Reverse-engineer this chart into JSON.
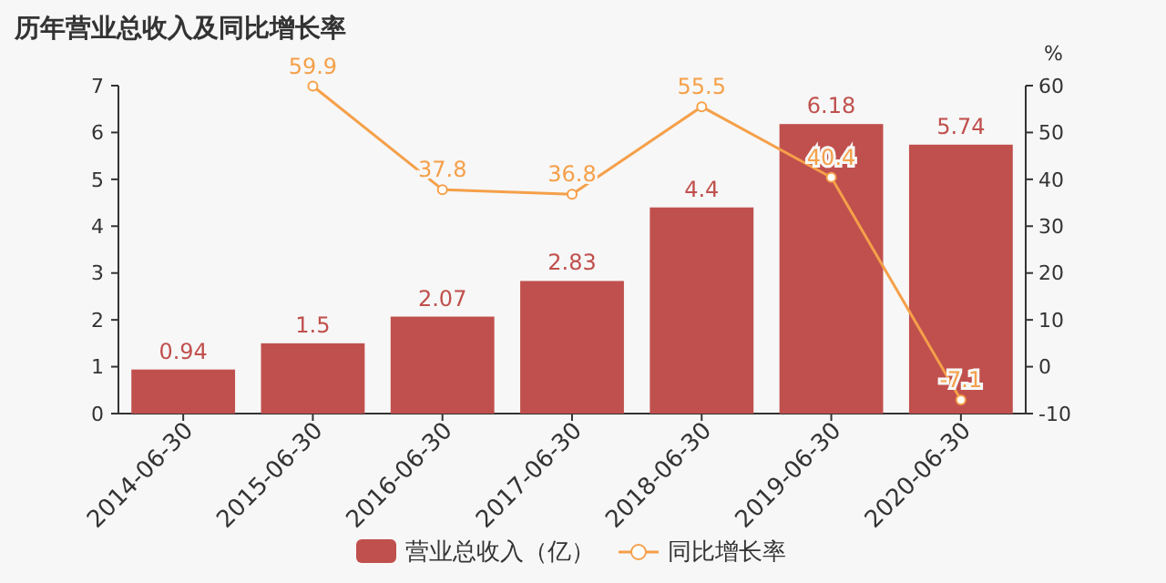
{
  "chart_data": {
    "type": "bar",
    "title": "历年营业总收入及同比增长率",
    "y2label": "%",
    "categories": [
      "2014-06-30",
      "2015-06-30",
      "2016-06-30",
      "2017-06-30",
      "2018-06-30",
      "2019-06-30",
      "2020-06-30"
    ],
    "series": [
      {
        "name": "营业总收入（亿）",
        "color": "#c0504d",
        "values": [
          0.94,
          1.5,
          2.07,
          2.83,
          4.4,
          6.18,
          5.74
        ]
      },
      {
        "name": "同比增长率",
        "type": "line",
        "axis": "y2",
        "color": "#f5a04a",
        "values": [
          null,
          59.9,
          37.8,
          36.8,
          55.5,
          40.4,
          -7.1
        ]
      }
    ],
    "ylim": [
      0,
      7
    ],
    "yticks": [
      0,
      1,
      2,
      3,
      4,
      5,
      6,
      7
    ],
    "y2lim": [
      -10,
      60
    ],
    "y2ticks": [
      -10,
      0,
      10,
      20,
      30,
      40,
      50,
      60
    ],
    "data_labels": true,
    "legend": "bottom",
    "marker": "circle",
    "grid": false
  }
}
